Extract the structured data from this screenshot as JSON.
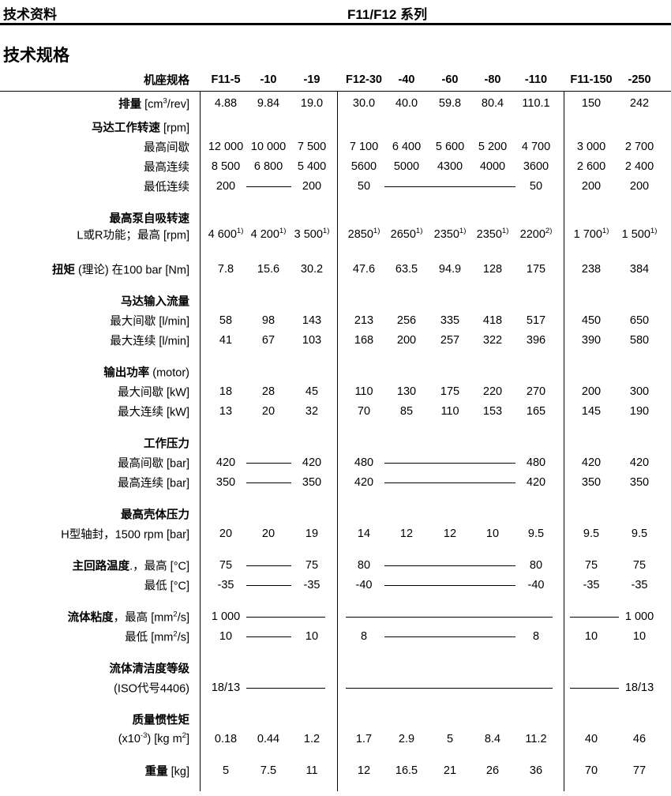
{
  "header": {
    "left": "技术资料",
    "center": "F11/F12 系列"
  },
  "title": "技术规格",
  "columns_label": "机座规格",
  "columns": [
    "F11-5",
    "-10",
    "-19",
    "F12-30",
    "-40",
    "-60",
    "-80",
    "-110",
    "F11-150",
    "-250"
  ],
  "rows": [
    {
      "label": [
        {
          "text": "排量",
          "bold": true
        },
        {
          "text": " [cm"
        },
        {
          "text": "3",
          "sup": true
        },
        {
          "text": "/rev]"
        }
      ],
      "values": [
        "4.88",
        "9.84",
        "19.0",
        "30.0",
        "40.0",
        "59.8",
        "80.4",
        "110.1",
        "150",
        "242"
      ]
    },
    {
      "label": [
        {
          "text": "马达工作转速",
          "bold": true
        },
        {
          "text": " [rpm]"
        }
      ]
    },
    {
      "label": [
        {
          "text": "最高间歇"
        }
      ],
      "values": [
        "12 000",
        "10 000",
        "7 500",
        "7 100",
        "6 400",
        "5 600",
        "5 200",
        "4 700",
        "3 000",
        "2 700"
      ]
    },
    {
      "label": [
        {
          "text": "最高连续"
        }
      ],
      "values": [
        "8 500",
        "6 800",
        "5 400",
        "5600",
        "5000",
        "4300",
        "4000",
        "3600",
        "2 600",
        "2 400"
      ]
    },
    {
      "label": [
        {
          "text": "最低连续"
        }
      ],
      "values": [
        "200",
        "—",
        "200",
        "50",
        "—",
        "—",
        "—",
        "50",
        "200",
        "200"
      ]
    },
    {
      "label": [
        {
          "text": "最高泵自吸转速",
          "bold": true
        }
      ]
    },
    {
      "label": [
        {
          "text": "L或R功能；最高 [rpm]"
        }
      ],
      "values": [
        "4 600|1)",
        "4 200|1)",
        "3 500|1)",
        "2850|1)",
        "2650|1)",
        "2350|1)",
        "2350|1)",
        "2200|2)",
        "1 700|1)",
        "1 500|1)"
      ]
    },
    {
      "label": [
        {
          "text": "扭矩",
          "bold": true
        },
        {
          "text": " (理论) 在100 bar  [Nm]"
        }
      ],
      "values": [
        "7.8",
        "15.6",
        "30.2",
        "47.6",
        "63.5",
        "94.9",
        "128",
        "175",
        "238",
        "384"
      ]
    },
    {
      "label": [
        {
          "text": "马达输入流量",
          "bold": true
        }
      ]
    },
    {
      "label": [
        {
          "text": "最大间歇 [l/min]"
        }
      ],
      "values": [
        "58",
        "98",
        "143",
        "213",
        "256",
        "335",
        "418",
        "517",
        "450",
        "650"
      ]
    },
    {
      "label": [
        {
          "text": "最大连续 [l/min]"
        }
      ],
      "values": [
        "41",
        "67",
        "103",
        "168",
        "200",
        "257",
        "322",
        "396",
        "390",
        "580"
      ]
    },
    {
      "label": [
        {
          "text": "输出功率",
          "bold": true
        },
        {
          "text": " (motor)"
        }
      ]
    },
    {
      "label": [
        {
          "text": "最大间歇 [kW]"
        }
      ],
      "values": [
        "18",
        "28",
        "45",
        "110",
        "130",
        "175",
        "220",
        "270",
        "200",
        "300"
      ]
    },
    {
      "label": [
        {
          "text": "最大连续 [kW]"
        }
      ],
      "values": [
        "13",
        "20",
        "32",
        "70",
        "85",
        "110",
        "153",
        "165",
        "145",
        "190"
      ]
    },
    {
      "label": [
        {
          "text": "工作压力",
          "bold": true
        }
      ]
    },
    {
      "label": [
        {
          "text": "最高间歇  [bar]"
        }
      ],
      "values": [
        "420",
        "—",
        "420",
        "480",
        "—",
        "—",
        "—",
        "480",
        "420",
        "420"
      ]
    },
    {
      "label": [
        {
          "text": "最高连续  [bar]"
        }
      ],
      "values": [
        "350",
        "—",
        "350",
        "420",
        "—",
        "—",
        "—",
        "420",
        "350",
        "350"
      ]
    },
    {
      "label": [
        {
          "text": "最高壳体压力",
          "bold": true
        }
      ]
    },
    {
      "label": [
        {
          "text": "H型轴封，1500 rpm [bar]"
        }
      ],
      "values": [
        "20",
        "20",
        "19",
        "14",
        "12",
        "12",
        "10",
        "9.5",
        "9.5",
        "9.5"
      ]
    },
    {
      "label": [
        {
          "text": "主回路温度",
          "bold": true
        },
        {
          "text": ".，最高  [°C]"
        }
      ],
      "values": [
        "75",
        "—",
        "75",
        "80",
        "—",
        "—",
        "—",
        "80",
        "75",
        "75"
      ]
    },
    {
      "label": [
        {
          "text": "最低  [°C]"
        }
      ],
      "values": [
        "-35",
        "—",
        "-35",
        "-40",
        "—",
        "—",
        "—",
        "-40",
        "-35",
        "-35"
      ]
    },
    {
      "label": [
        {
          "text": "流体粘度",
          "bold": true
        },
        {
          "text": "，最高 [mm"
        },
        {
          "text": "2",
          "sup": true
        },
        {
          "text": "/s]"
        }
      ],
      "values": [
        "1 000",
        "—",
        "—",
        "—",
        "—",
        "—",
        "—",
        "—",
        "—",
        "1 000"
      ]
    },
    {
      "label": [
        {
          "text": "最低 [mm"
        },
        {
          "text": "2",
          "sup": true
        },
        {
          "text": "/s]"
        }
      ],
      "values": [
        "10",
        "—",
        "10",
        "8",
        "—",
        "—",
        "—",
        "8",
        "10",
        "10"
      ]
    },
    {
      "label": [
        {
          "text": "流体清洁度等级",
          "bold": true
        }
      ]
    },
    {
      "label": [
        {
          "text": "(ISO代号4406)"
        }
      ],
      "values": [
        "18/13",
        "—",
        "—",
        "—",
        "—",
        "—",
        "—",
        "—",
        "—",
        "18/13"
      ]
    },
    {
      "label": [
        {
          "text": "质量惯性矩",
          "bold": true
        }
      ]
    },
    {
      "label": [
        {
          "text": "(x10"
        },
        {
          "text": "-3",
          "sup": true
        },
        {
          "text": ") [kg m"
        },
        {
          "text": "2",
          "sup": true
        },
        {
          "text": "]"
        }
      ],
      "values": [
        "0.18",
        "0.44",
        "1.2",
        "1.7",
        "2.9",
        "5",
        "8.4",
        "11.2",
        "40",
        "46"
      ]
    },
    {
      "label": [
        {
          "text": "重量",
          "bold": true
        },
        {
          "text": " [kg]"
        }
      ],
      "values": [
        "5",
        "7.5",
        "11",
        "12",
        "16.5",
        "21",
        "26",
        "36",
        "70",
        "77"
      ]
    }
  ]
}
